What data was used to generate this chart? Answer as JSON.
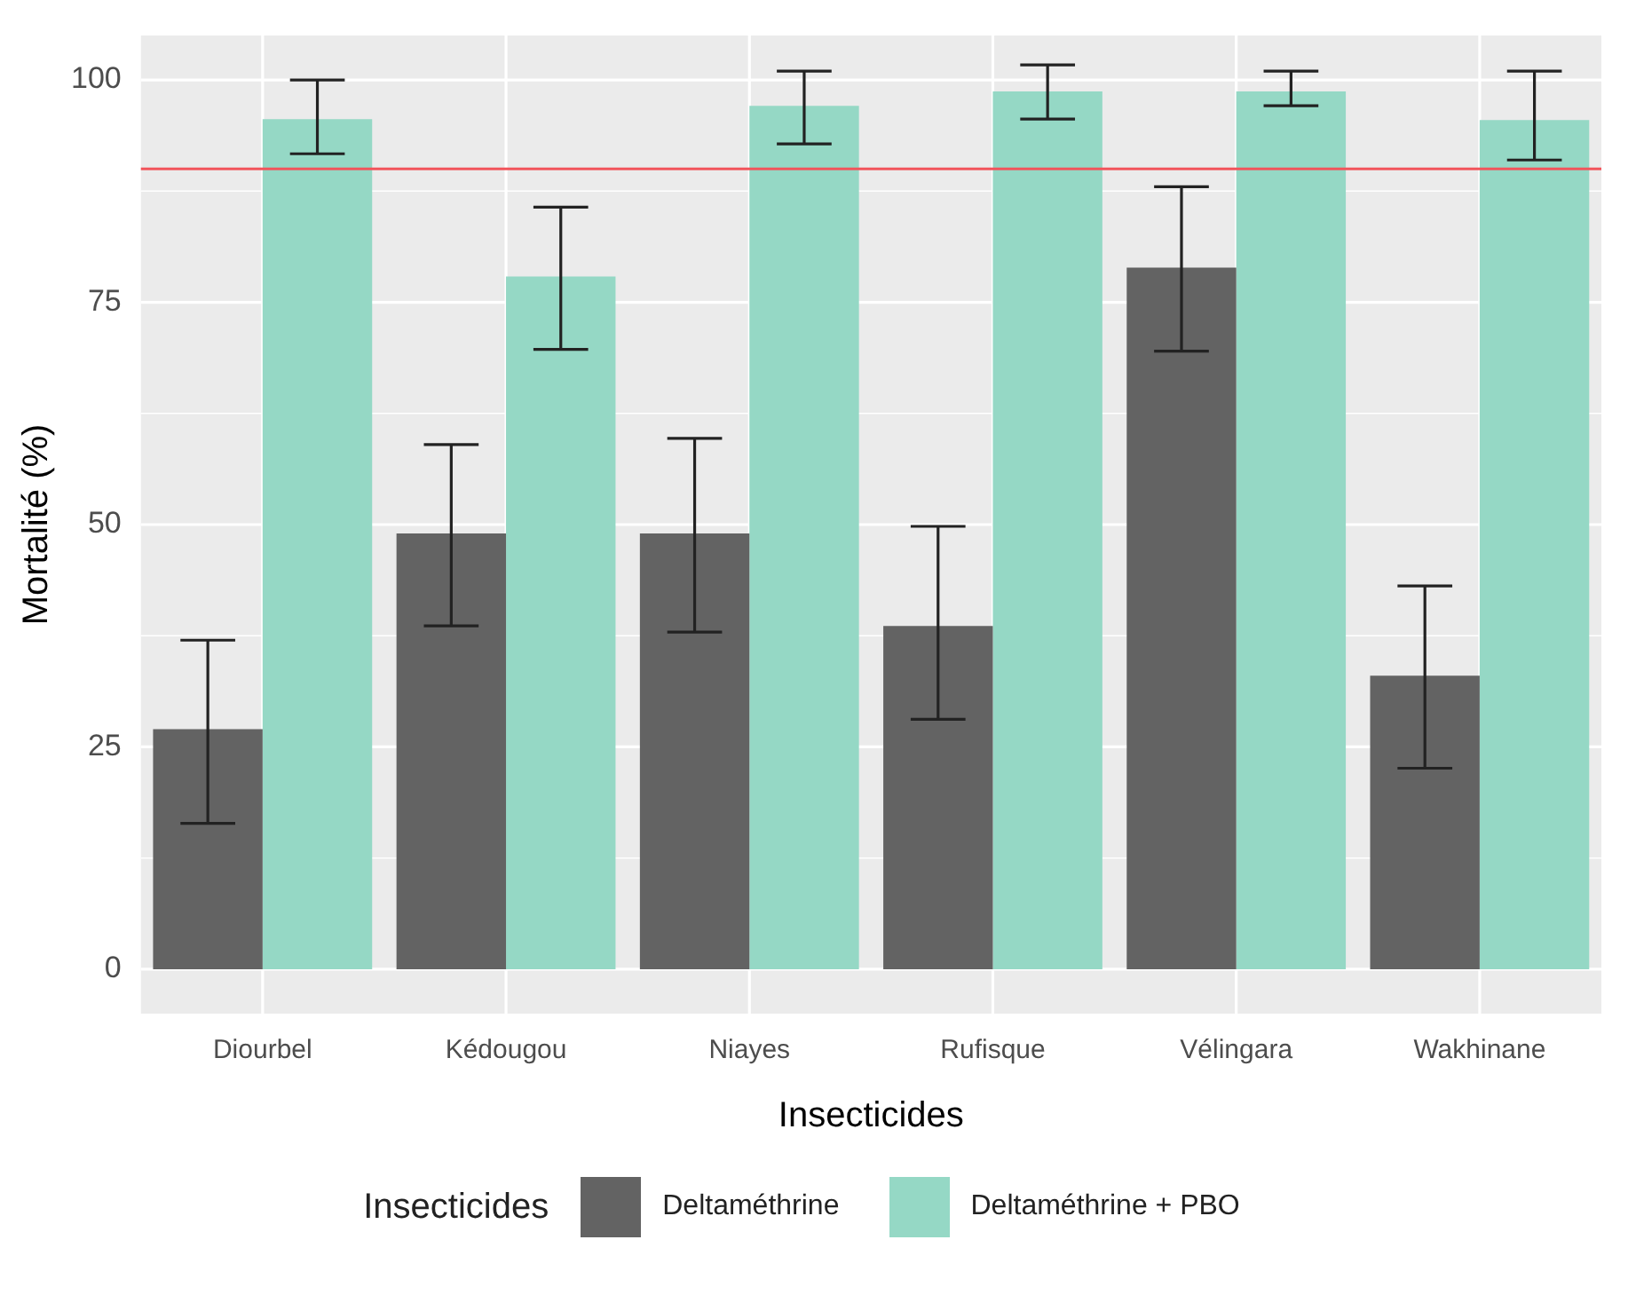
{
  "chart_data": {
    "type": "bar",
    "xlabel": "Insecticides",
    "ylabel": "Mortalité (%)",
    "legend_title": "Insecticides",
    "categories": [
      "Diourbel",
      "Kédougou",
      "Niayes",
      "Rufisque",
      "Vélingara",
      "Wakhinane"
    ],
    "series": [
      {
        "name": "Deltaméthrine",
        "color": "#636363",
        "values": [
          27,
          49,
          49,
          38.6,
          78.9,
          33
        ],
        "errors": [
          [
            16.4,
            37
          ],
          [
            38.6,
            59
          ],
          [
            37.9,
            59.7
          ],
          [
            28.1,
            49.8
          ],
          [
            69.5,
            88
          ],
          [
            22.6,
            43.1
          ]
        ]
      },
      {
        "name": "Deltaméthrine + PBO",
        "color": "#95d8c5",
        "values": [
          95.6,
          77.9,
          97.1,
          98.7,
          98.7,
          95.5
        ],
        "errors": [
          [
            91.7,
            100
          ],
          [
            69.7,
            85.7
          ],
          [
            92.8,
            101
          ],
          [
            95.6,
            101.7
          ],
          [
            97.1,
            101
          ],
          [
            91,
            101
          ]
        ]
      }
    ],
    "ylim": [
      -5,
      105
    ],
    "yticks": [
      0,
      25,
      50,
      75,
      100
    ],
    "grid": true,
    "legend": "bottom",
    "ref_lines": [
      {
        "axis": "y",
        "value": 90,
        "color": "#f2545b"
      }
    ]
  }
}
